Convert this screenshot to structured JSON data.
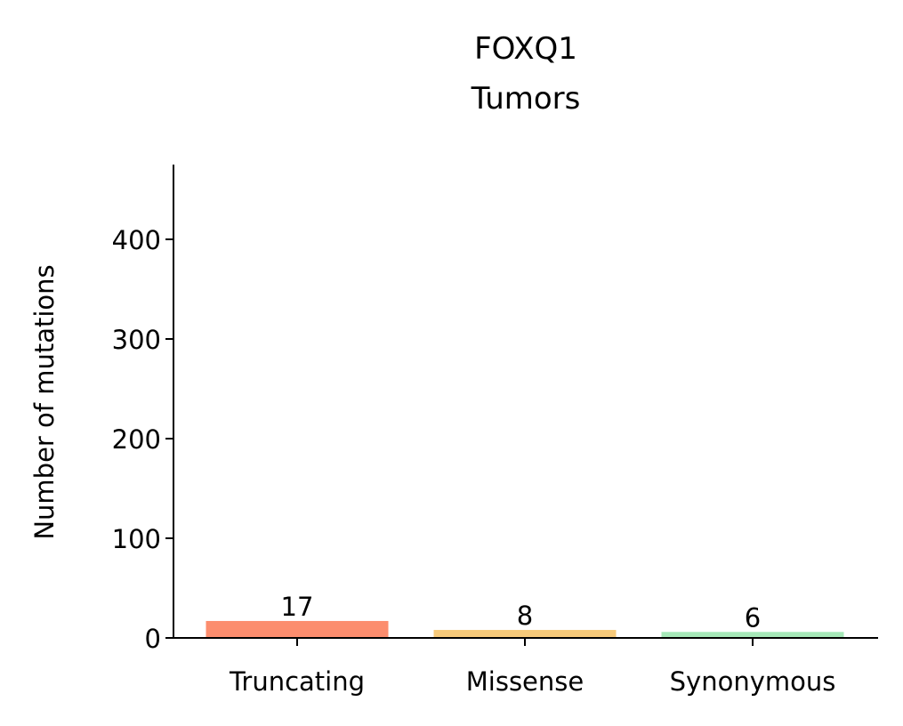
{
  "chart_data": {
    "type": "bar",
    "title": "FOXQ1",
    "subtitle": "Tumors",
    "xlabel": "",
    "ylabel": "Number of mutations",
    "categories": [
      "Truncating",
      "Missense",
      "Synonymous"
    ],
    "values": [
      17,
      8,
      6
    ],
    "bar_labels": [
      "17",
      "8",
      "6"
    ],
    "colors": [
      "#fc8d6e",
      "#f7ca7a",
      "#a6e8b8"
    ],
    "ylim": [
      0,
      475
    ],
    "yticks": [
      0,
      100,
      200,
      300,
      400
    ],
    "ytick_labels": [
      "0",
      "100",
      "200",
      "300",
      "400"
    ],
    "grid": false,
    "legend": "none"
  }
}
